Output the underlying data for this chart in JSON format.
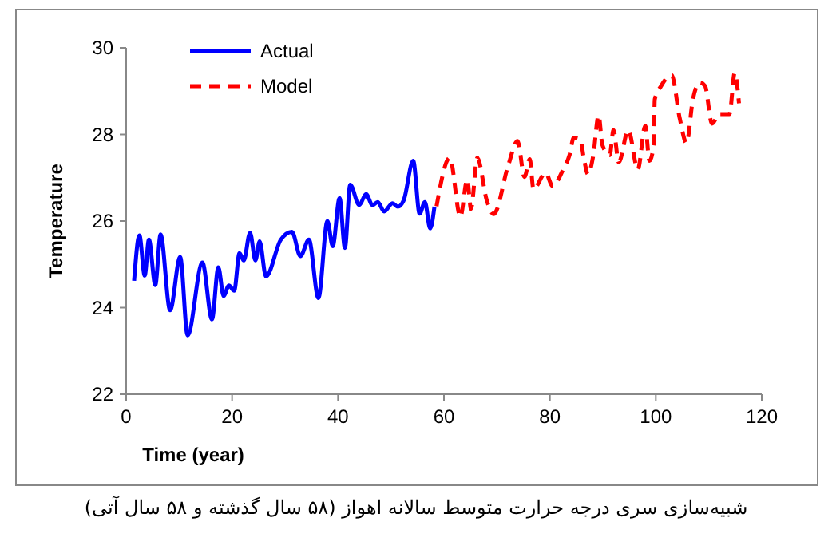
{
  "chart_data": {
    "type": "line",
    "xlabel": "Time (year)",
    "ylabel": "Temperature",
    "xlim": [
      0,
      120
    ],
    "xticks": [
      0,
      20,
      40,
      60,
      80,
      100,
      120
    ],
    "ylim": [
      22,
      30
    ],
    "yticks": [
      22,
      24,
      26,
      28,
      30
    ],
    "grid": false,
    "legend": "top left",
    "marker": "none",
    "annotations": [
      "شبیه‌سازی سری درجه حرارت متوسط سالانه اهواز (۵۸ سال گذشته و ۵۸ سال آتی)"
    ],
    "series": [
      {
        "name": "Actual",
        "color": "#0000ff",
        "line_style": "solid",
        "x": [
          1.5,
          2.5,
          3.5,
          4.3,
          5.5,
          6.5,
          8.3,
          10.2,
          11.6,
          14.4,
          16.2,
          17.4,
          18.4,
          19.4,
          20.4,
          21.4,
          22.2,
          23.4,
          24.4,
          25.2,
          26.4,
          29.2,
          31.3,
          32.9,
          34.5,
          36.3,
          38.0,
          39.0,
          40.3,
          41.3,
          42.3,
          44.0,
          45.3,
          46.5,
          47.5,
          48.7,
          50.3,
          51.3,
          52.4,
          54.2,
          55.4,
          56.4,
          57.4,
          58.2
        ],
        "values": [
          24.62,
          25.67,
          24.74,
          25.57,
          24.52,
          25.69,
          23.94,
          25.17,
          23.36,
          25.04,
          23.73,
          24.93,
          24.27,
          24.51,
          24.39,
          25.26,
          25.09,
          25.73,
          25.09,
          25.53,
          24.72,
          25.57,
          25.75,
          25.19,
          25.57,
          24.22,
          26.0,
          25.42,
          26.53,
          25.38,
          26.84,
          26.37,
          26.62,
          26.37,
          26.44,
          26.22,
          26.41,
          26.33,
          26.48,
          27.39,
          26.17,
          26.44,
          25.83,
          26.33
        ]
      },
      {
        "name": "Model",
        "color": "#ff0000",
        "line_style": "dashed",
        "x": [
          58.6,
          61.1,
          63.1,
          64.4,
          65.1,
          66.3,
          68.1,
          69.4,
          72.1,
          73.9,
          75.2,
          76.2,
          76.9,
          79.2,
          80.5,
          82.5,
          83.7,
          84.5,
          85.7,
          86.5,
          87.2,
          88.2,
          89.2,
          89.9,
          91.3,
          92.0,
          93.0,
          94.8,
          96.6,
          98.0,
          98.8,
          99.6,
          99.8,
          101.0,
          103.0,
          104.5,
          105.8,
          107.0,
          108.3,
          109.3,
          110.6,
          112.0,
          113.9,
          114.9,
          115.7
        ],
        "values": [
          26.34,
          27.46,
          26.1,
          26.96,
          26.28,
          27.46,
          26.47,
          26.16,
          27.27,
          27.85,
          27.02,
          27.43,
          26.74,
          27.11,
          26.81,
          27.19,
          27.52,
          27.92,
          27.89,
          27.39,
          27.08,
          27.52,
          28.44,
          27.76,
          27.52,
          28.1,
          27.36,
          28.1,
          27.19,
          28.2,
          27.39,
          27.76,
          28.81,
          29.12,
          29.37,
          28.38,
          27.8,
          28.81,
          29.2,
          29.12,
          28.25,
          28.47,
          28.47,
          29.42,
          28.72
        ]
      }
    ]
  }
}
